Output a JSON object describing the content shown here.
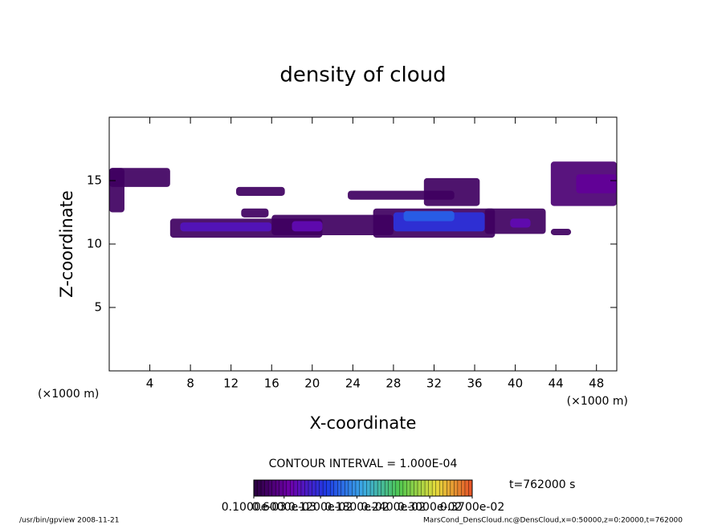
{
  "chart_data": {
    "type": "contour",
    "title": "density of cloud",
    "x_label": "X-coordinate",
    "y_label": "Z-coordinate",
    "x_unit": "(×1000 m)",
    "y_unit": "(×1000 m)",
    "xlim": [
      0,
      50
    ],
    "ylim": [
      0,
      20
    ],
    "xticks": [
      4,
      8,
      12,
      16,
      20,
      24,
      28,
      32,
      36,
      40,
      44,
      48
    ],
    "yticks": [
      5,
      10,
      15
    ],
    "cells": [
      {
        "x": [
          0,
          6
        ],
        "z": [
          14.5,
          16
        ],
        "value": 0.0003
      },
      {
        "x": [
          0,
          1.5
        ],
        "z": [
          12.5,
          16
        ],
        "value": 0.0003
      },
      {
        "x": [
          43.5,
          50
        ],
        "z": [
          13,
          16.5
        ],
        "value": 0.0004
      },
      {
        "x": [
          46,
          50
        ],
        "z": [
          14,
          15.5
        ],
        "value": 0.0006
      },
      {
        "x": [
          6,
          21
        ],
        "z": [
          10.5,
          12
        ],
        "value": 0.0003
      },
      {
        "x": [
          7,
          16
        ],
        "z": [
          11,
          11.7
        ],
        "value": 0.0009
      },
      {
        "x": [
          12.5,
          17.3
        ],
        "z": [
          13.8,
          14.5
        ],
        "value": 0.0003
      },
      {
        "x": [
          13,
          15.7
        ],
        "z": [
          12.1,
          12.8
        ],
        "value": 0.0003
      },
      {
        "x": [
          16,
          28
        ],
        "z": [
          10.7,
          12.3
        ],
        "value": 0.0003
      },
      {
        "x": [
          18,
          21
        ],
        "z": [
          11,
          11.8
        ],
        "value": 0.0008
      },
      {
        "x": [
          23.5,
          34
        ],
        "z": [
          13.5,
          14.2
        ],
        "value": 0.0003
      },
      {
        "x": [
          31,
          36.5
        ],
        "z": [
          13,
          15.2
        ],
        "value": 0.0003
      },
      {
        "x": [
          26,
          38
        ],
        "z": [
          10.5,
          12.8
        ],
        "value": 0.0003
      },
      {
        "x": [
          28,
          37
        ],
        "z": [
          11,
          12.5
        ],
        "value": 0.0012
      },
      {
        "x": [
          29,
          34
        ],
        "z": [
          11.8,
          12.6
        ],
        "value": 0.0015
      },
      {
        "x": [
          37,
          43
        ],
        "z": [
          10.8,
          12.8
        ],
        "value": 0.0003
      },
      {
        "x": [
          39.5,
          41.5
        ],
        "z": [
          11.3,
          12
        ],
        "value": 0.0008
      },
      {
        "x": [
          43.5,
          45.5
        ],
        "z": [
          10.7,
          11.2
        ],
        "value": 0.0003
      }
    ],
    "contour_interval": "CONTOUR INTERVAL = 1.000E-04",
    "colorbar_ticks": [
      {
        "value": 0.0001,
        "label": "0.1000e-03"
      },
      {
        "value": 0.0006,
        "label": "0.6000e-03"
      },
      {
        "value": 0.0012,
        "label": "0.1200e-02"
      },
      {
        "value": 0.0018,
        "label": "0.1800e-02"
      },
      {
        "value": 0.0024,
        "label": "0.2400e-02"
      },
      {
        "value": 0.003,
        "label": "0.3000e-02"
      },
      {
        "value": 0.0037,
        "label": "0.3700e-02"
      }
    ],
    "time_label": "t=762000 s",
    "footer_left": "/usr/bin/gpview   2008-11-21",
    "footer_right": "MarsCond_DensCloud.nc@DensCloud,x=0:50000,z=0:20000,t=762000"
  }
}
